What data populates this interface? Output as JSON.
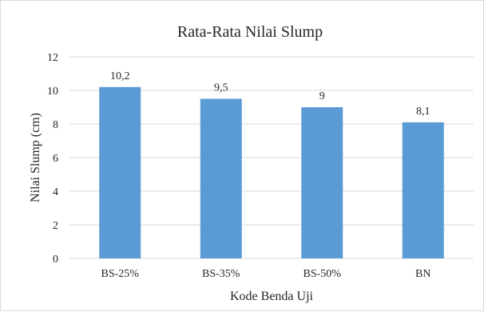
{
  "chart_data": {
    "type": "bar",
    "title": "Rata-Rata Nilai  Slump",
    "xlabel": "Kode Benda Uji",
    "ylabel": "Nilai Slump (cm)",
    "categories": [
      "BS-25%",
      "BS-35%",
      "BS-50%",
      "BN"
    ],
    "values": [
      10.2,
      9.5,
      9,
      8.1
    ],
    "value_labels": [
      "10,2",
      "9,5",
      "9",
      "8,1"
    ],
    "ylim": [
      0,
      12
    ],
    "yticks": [
      0,
      2,
      4,
      6,
      8,
      10,
      12
    ],
    "grid": true,
    "legend": "none",
    "bar_color": "#5B9BD5"
  }
}
